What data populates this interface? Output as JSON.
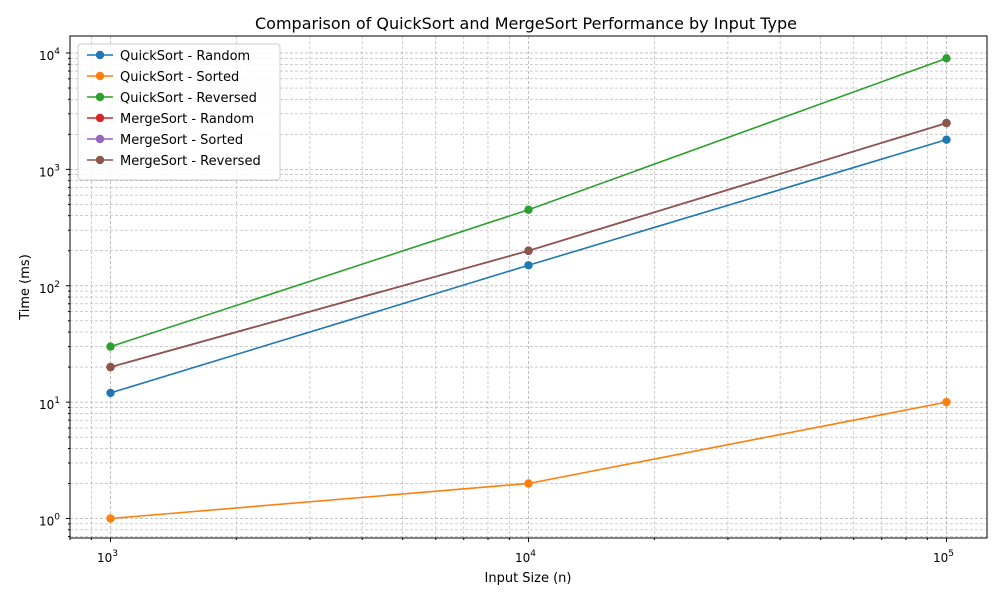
{
  "chart_data": {
    "type": "line",
    "title": "Comparison of QuickSort and MergeSort Performance by Input Type",
    "xlabel": "Input Size (n)",
    "ylabel": "Time (ms)",
    "xscale": "log",
    "yscale": "log",
    "xlim": [
      800,
      125000
    ],
    "ylim": [
      0.68,
      14000
    ],
    "grid": true,
    "legend_position": "top-left",
    "x": [
      1000,
      10000,
      100000
    ],
    "x_ticks": [
      {
        "base": "10",
        "exp": "3",
        "value": 1000
      },
      {
        "base": "10",
        "exp": "4",
        "value": 10000
      },
      {
        "base": "10",
        "exp": "5",
        "value": 100000
      }
    ],
    "y_ticks": [
      {
        "base": "10",
        "exp": "0",
        "value": 1
      },
      {
        "base": "10",
        "exp": "1",
        "value": 10
      },
      {
        "base": "10",
        "exp": "2",
        "value": 100
      },
      {
        "base": "10",
        "exp": "3",
        "value": 1000
      },
      {
        "base": "10",
        "exp": "4",
        "value": 10000
      }
    ],
    "series": [
      {
        "name": "QuickSort - Random",
        "color": "#1f77b4",
        "values": [
          12,
          150,
          1800
        ]
      },
      {
        "name": "QuickSort - Sorted",
        "color": "#ff7f0e",
        "values": [
          1,
          2,
          10
        ]
      },
      {
        "name": "QuickSort - Reversed",
        "color": "#2ca02c",
        "values": [
          30,
          450,
          9000
        ]
      },
      {
        "name": "MergeSort - Random",
        "color": "#d62728",
        "values": [
          20,
          200,
          2500
        ]
      },
      {
        "name": "MergeSort - Sorted",
        "color": "#9467bd",
        "values": [
          20,
          200,
          2500
        ]
      },
      {
        "name": "MergeSort - Reversed",
        "color": "#8c564b",
        "values": [
          20,
          200,
          2500
        ]
      }
    ]
  }
}
